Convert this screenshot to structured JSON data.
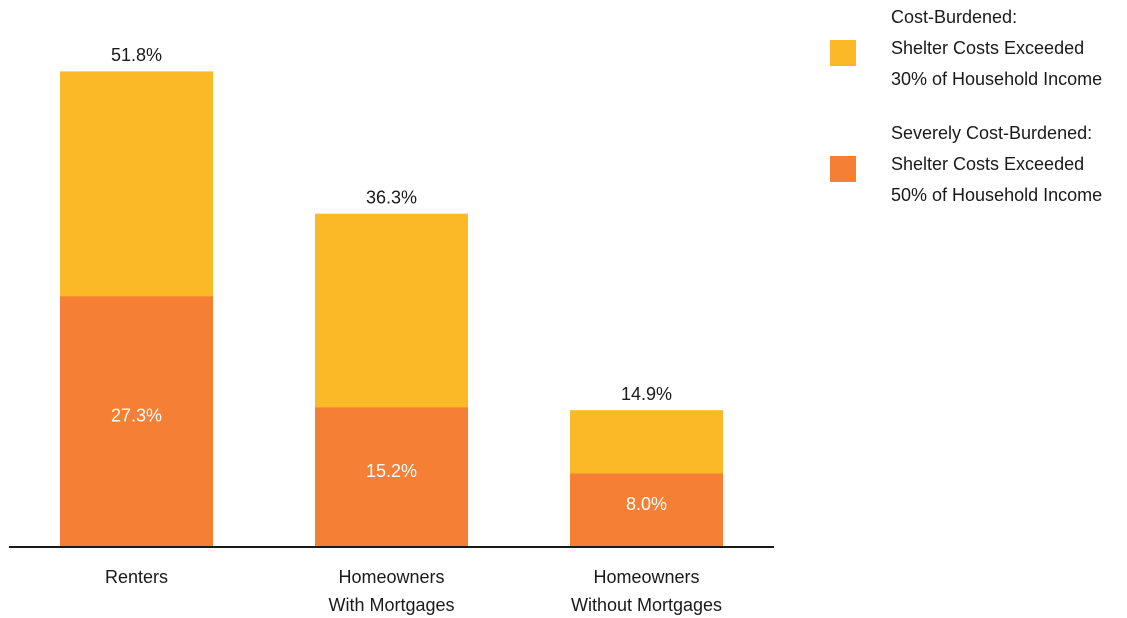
{
  "chart_data": {
    "type": "bar",
    "overlap": true,
    "categories": [
      [
        "Renters"
      ],
      [
        "Homeowners",
        "With Mortgages"
      ],
      [
        "Homeowners",
        "Without Mortgages"
      ]
    ],
    "series": [
      {
        "name": [
          "Cost-Burdened:",
          "Shelter Costs Exceeded",
          "30% of Household Income"
        ],
        "color": "#fbb827",
        "values": [
          51.8,
          36.3,
          14.9
        ],
        "value_labels": [
          "51.8%",
          "36.3%",
          "14.9%"
        ]
      },
      {
        "name": [
          "Severely Cost-Burdened:",
          "Shelter Costs Exceeded",
          "50% of Household Income"
        ],
        "color": "#f47f35",
        "values": [
          27.3,
          15.2,
          8.0
        ],
        "value_labels": [
          "27.3%",
          "15.2%",
          "8.0%"
        ]
      }
    ],
    "ylim": [
      0,
      55
    ],
    "legend": "top-right"
  }
}
